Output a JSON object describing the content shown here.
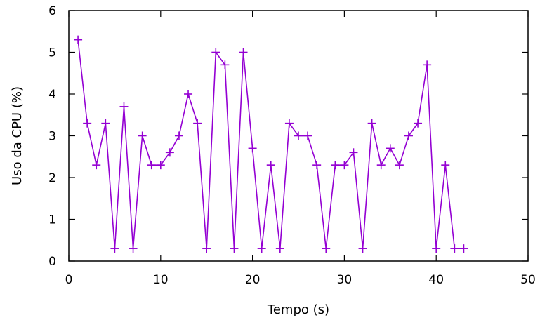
{
  "chart_data": {
    "type": "line",
    "title": "",
    "xlabel": "Tempo (s)",
    "ylabel": "Uso da CPU (%)",
    "xlim": [
      0,
      50
    ],
    "ylim": [
      0,
      6
    ],
    "xticks": [
      0,
      10,
      20,
      30,
      40,
      50
    ],
    "yticks": [
      0,
      1,
      2,
      3,
      4,
      5,
      6
    ],
    "x_tick_labels": [
      "0",
      "10",
      "20",
      "30",
      "40",
      "50"
    ],
    "y_tick_labels": [
      "0",
      "1",
      "2",
      "3",
      "4",
      "5",
      "6"
    ],
    "grid": false,
    "legend": false,
    "marker": "plus",
    "color": "#9400d3",
    "series": [
      {
        "x": [
          1,
          2,
          3,
          4,
          5,
          6,
          7,
          8,
          9,
          10,
          11,
          12,
          13,
          14,
          15,
          16,
          17,
          18,
          19,
          20,
          21,
          22,
          23,
          24,
          25,
          26,
          27,
          28,
          29,
          30,
          31,
          32,
          33,
          34,
          35,
          36,
          37,
          38,
          39,
          40,
          41,
          42,
          43
        ],
        "values": [
          5.3,
          3.3,
          2.3,
          3.3,
          0.3,
          3.7,
          0.3,
          3.0,
          2.3,
          2.3,
          2.6,
          3.0,
          4.0,
          3.3,
          0.3,
          5.0,
          4.7,
          0.3,
          5.0,
          2.7,
          0.3,
          2.3,
          0.3,
          3.3,
          3.0,
          3.0,
          2.3,
          0.3,
          2.3,
          2.3,
          2.6,
          0.3,
          3.3,
          2.3,
          2.7,
          2.3,
          3.0,
          3.3,
          4.7,
          0.3,
          2.3,
          0.3,
          0.3
        ]
      }
    ]
  }
}
